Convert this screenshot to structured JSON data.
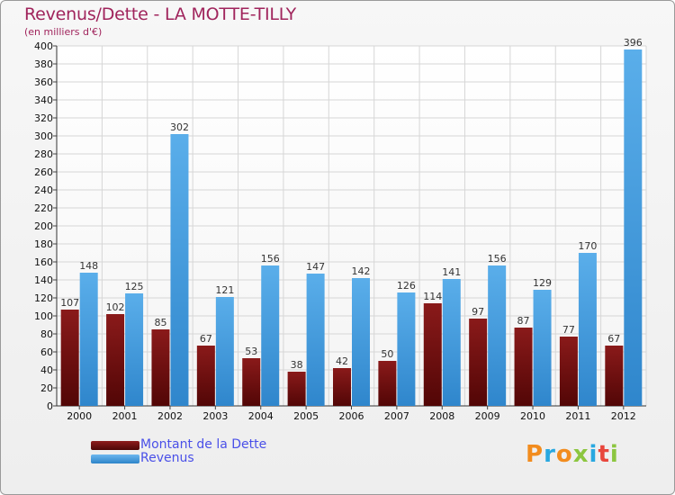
{
  "chart_data": {
    "type": "bar",
    "title": "Revenus/Dette - LA MOTTE-TILLY",
    "subtitle": "(en milliers d'€)",
    "categories": [
      "2000",
      "2001",
      "2002",
      "2003",
      "2004",
      "2005",
      "2006",
      "2007",
      "2008",
      "2009",
      "2010",
      "2011",
      "2012"
    ],
    "series": [
      {
        "name": "Montant de la Dette",
        "color": "#6e0a0a",
        "values": [
          107,
          102,
          85,
          67,
          53,
          38,
          42,
          50,
          114,
          97,
          87,
          77,
          67
        ]
      },
      {
        "name": "Revenus",
        "color": "#3f97dc",
        "values": [
          148,
          125,
          302,
          121,
          156,
          147,
          142,
          126,
          141,
          156,
          129,
          170,
          396
        ]
      }
    ],
    "ylim": [
      0,
      400
    ],
    "yticks": [
      0,
      20,
      40,
      60,
      80,
      100,
      120,
      140,
      160,
      180,
      200,
      220,
      240,
      260,
      280,
      300,
      320,
      340,
      360,
      380,
      400
    ],
    "grid": true,
    "legend_position": "bottom-left"
  },
  "logo": {
    "text": "Proxiti",
    "colors": [
      "#f28c1e",
      "#29a8e0",
      "#f28c1e",
      "#8cc63f",
      "#29a8e0",
      "#e8463c",
      "#8cc63f"
    ]
  }
}
